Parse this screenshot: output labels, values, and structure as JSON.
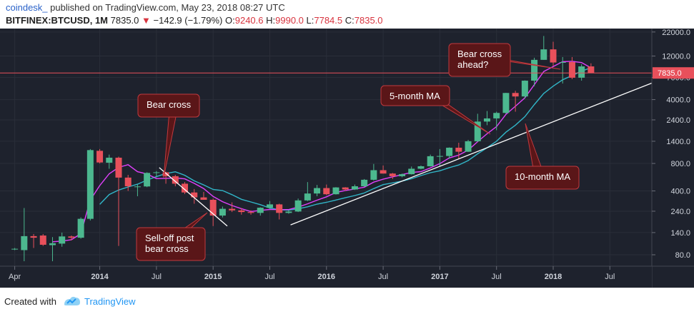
{
  "header": {
    "author": "coindesk_",
    "published_text": "published on TradingView.com, May 23, 2018 08:27 UTC",
    "symbol": "BITFINEX:BTCUSD, 1M",
    "last": "7835.0",
    "change": "−142.9 (−1.79%)",
    "open_label": "O:",
    "open": "9240.6",
    "high_label": "H:",
    "high": "9990.0",
    "low_label": "L:",
    "low": "7784.5",
    "close_label": "C:",
    "close": "7835.0"
  },
  "footer": {
    "created_with": "Created with",
    "brand": "TradingView"
  },
  "colors": {
    "background": "#1e222d",
    "up": "#4cb88f",
    "down": "#e8505b",
    "ma5": "#e040fb",
    "ma10": "#31b6c8",
    "price_line": "#e8505b",
    "annotation_bg": "#5a1618",
    "annotation_border": "#c0393e"
  },
  "chart_data": {
    "type": "candlestick",
    "title": "BITFINEX:BTCUSD, 1M",
    "y_scale": "log",
    "ylim": [
      60,
      24000
    ],
    "y_ticks": [
      80,
      140,
      240,
      400,
      800,
      1400,
      2400,
      4000,
      7000,
      12000,
      22000
    ],
    "y_tick_labels": [
      "80.0",
      "140.0",
      "240.0",
      "400.0",
      "800.0",
      "1400.0",
      "2400.0",
      "4000.0",
      "7000.0",
      "12000.0",
      "22000.0"
    ],
    "last_price_label": "7835.0",
    "last_price": 7835,
    "x_ticks": [
      {
        "label": "Apr",
        "index": 0,
        "bold": false
      },
      {
        "label": "2014",
        "index": 9,
        "bold": true
      },
      {
        "label": "Jul",
        "index": 15,
        "bold": false
      },
      {
        "label": "2015",
        "index": 21,
        "bold": true
      },
      {
        "label": "Jul",
        "index": 27,
        "bold": false
      },
      {
        "label": "2016",
        "index": 33,
        "bold": true
      },
      {
        "label": "Jul",
        "index": 39,
        "bold": false
      },
      {
        "label": "2017",
        "index": 45,
        "bold": true
      },
      {
        "label": "Jul",
        "index": 51,
        "bold": false
      },
      {
        "label": "2018",
        "index": 57,
        "bold": true
      },
      {
        "label": "Jul",
        "index": 63,
        "bold": false
      }
    ],
    "x_total_slots": 69,
    "candles": [
      {
        "o": 93,
        "h": 95,
        "l": 90,
        "c": 93
      },
      {
        "o": 90,
        "h": 260,
        "l": 68,
        "c": 128
      },
      {
        "o": 128,
        "h": 135,
        "l": 95,
        "c": 123
      },
      {
        "o": 130,
        "h": 135,
        "l": 100,
        "c": 103
      },
      {
        "o": 102,
        "h": 125,
        "l": 68,
        "c": 107
      },
      {
        "o": 106,
        "h": 140,
        "l": 98,
        "c": 127
      },
      {
        "o": 127,
        "h": 130,
        "l": 115,
        "c": 123
      },
      {
        "o": 123,
        "h": 205,
        "l": 120,
        "c": 198
      },
      {
        "o": 198,
        "h": 1150,
        "l": 190,
        "c": 1120
      },
      {
        "o": 1100,
        "h": 1150,
        "l": 800,
        "c": 820
      },
      {
        "o": 815,
        "h": 1000,
        "l": 700,
        "c": 925
      },
      {
        "o": 925,
        "h": 950,
        "l": 100,
        "c": 560
      },
      {
        "o": 560,
        "h": 600,
        "l": 400,
        "c": 450
      },
      {
        "o": 448,
        "h": 470,
        "l": 350,
        "c": 448
      },
      {
        "o": 448,
        "h": 640,
        "l": 440,
        "c": 630
      },
      {
        "o": 630,
        "h": 660,
        "l": 560,
        "c": 640
      },
      {
        "o": 640,
        "h": 650,
        "l": 480,
        "c": 580
      },
      {
        "o": 580,
        "h": 600,
        "l": 450,
        "c": 480
      },
      {
        "o": 480,
        "h": 500,
        "l": 370,
        "c": 385
      },
      {
        "o": 385,
        "h": 420,
        "l": 290,
        "c": 340
      },
      {
        "o": 340,
        "h": 390,
        "l": 320,
        "c": 320
      },
      {
        "o": 320,
        "h": 330,
        "l": 165,
        "c": 215
      },
      {
        "o": 215,
        "h": 270,
        "l": 205,
        "c": 255
      },
      {
        "o": 255,
        "h": 300,
        "l": 235,
        "c": 245
      },
      {
        "o": 245,
        "h": 260,
        "l": 220,
        "c": 235
      },
      {
        "o": 235,
        "h": 245,
        "l": 220,
        "c": 230
      },
      {
        "o": 230,
        "h": 265,
        "l": 215,
        "c": 262
      },
      {
        "o": 262,
        "h": 310,
        "l": 255,
        "c": 285
      },
      {
        "o": 285,
        "h": 290,
        "l": 195,
        "c": 230
      },
      {
        "o": 230,
        "h": 245,
        "l": 225,
        "c": 238
      },
      {
        "o": 238,
        "h": 330,
        "l": 235,
        "c": 315
      },
      {
        "o": 315,
        "h": 500,
        "l": 310,
        "c": 375
      },
      {
        "o": 375,
        "h": 465,
        "l": 350,
        "c": 430
      },
      {
        "o": 430,
        "h": 470,
        "l": 360,
        "c": 368
      },
      {
        "o": 368,
        "h": 440,
        "l": 365,
        "c": 437
      },
      {
        "o": 437,
        "h": 440,
        "l": 400,
        "c": 415
      },
      {
        "o": 415,
        "h": 470,
        "l": 410,
        "c": 450
      },
      {
        "o": 450,
        "h": 540,
        "l": 445,
        "c": 530
      },
      {
        "o": 530,
        "h": 790,
        "l": 520,
        "c": 675
      },
      {
        "o": 675,
        "h": 760,
        "l": 620,
        "c": 620
      },
      {
        "o": 620,
        "h": 630,
        "l": 540,
        "c": 580
      },
      {
        "o": 580,
        "h": 620,
        "l": 565,
        "c": 610
      },
      {
        "o": 610,
        "h": 740,
        "l": 605,
        "c": 700
      },
      {
        "o": 700,
        "h": 760,
        "l": 690,
        "c": 745
      },
      {
        "o": 745,
        "h": 1000,
        "l": 740,
        "c": 960
      },
      {
        "o": 960,
        "h": 1150,
        "l": 750,
        "c": 965
      },
      {
        "o": 965,
        "h": 1200,
        "l": 900,
        "c": 1190
      },
      {
        "o": 1190,
        "h": 1350,
        "l": 900,
        "c": 1075
      },
      {
        "o": 1075,
        "h": 1450,
        "l": 1070,
        "c": 1400
      },
      {
        "o": 1400,
        "h": 2800,
        "l": 1380,
        "c": 2300
      },
      {
        "o": 2300,
        "h": 3000,
        "l": 2100,
        "c": 2490
      },
      {
        "o": 2490,
        "h": 2950,
        "l": 1850,
        "c": 2860
      },
      {
        "o": 2860,
        "h": 4750,
        "l": 2800,
        "c": 4730
      },
      {
        "o": 4730,
        "h": 5000,
        "l": 2950,
        "c": 4330
      },
      {
        "o": 4330,
        "h": 6500,
        "l": 4100,
        "c": 6450
      },
      {
        "o": 6450,
        "h": 11500,
        "l": 5600,
        "c": 10900
      },
      {
        "o": 10900,
        "h": 19900,
        "l": 10900,
        "c": 14200
      },
      {
        "o": 14200,
        "h": 17200,
        "l": 9300,
        "c": 10200
      },
      {
        "o": 10200,
        "h": 11700,
        "l": 6000,
        "c": 10300
      },
      {
        "o": 10300,
        "h": 11700,
        "l": 6700,
        "c": 6950
      },
      {
        "o": 6950,
        "h": 9750,
        "l": 6450,
        "c": 9240
      },
      {
        "o": 9240,
        "h": 9990,
        "l": 7784,
        "c": 7835
      }
    ],
    "ma5": [
      {
        "i": 4,
        "v": 111
      },
      {
        "i": 5,
        "v": 113
      },
      {
        "i": 6,
        "v": 117
      },
      {
        "i": 7,
        "v": 136
      },
      {
        "i": 8,
        "v": 318
      },
      {
        "i": 9,
        "v": 458
      },
      {
        "i": 10,
        "v": 617
      },
      {
        "i": 11,
        "v": 725
      },
      {
        "i": 12,
        "v": 775
      },
      {
        "i": 13,
        "v": 650
      },
      {
        "i": 14,
        "v": 613
      },
      {
        "i": 15,
        "v": 546
      },
      {
        "i": 16,
        "v": 550
      },
      {
        "i": 17,
        "v": 556
      },
      {
        "i": 18,
        "v": 543
      },
      {
        "i": 19,
        "v": 485
      },
      {
        "i": 20,
        "v": 425
      },
      {
        "i": 21,
        "v": 348
      },
      {
        "i": 22,
        "v": 305
      },
      {
        "i": 23,
        "v": 277
      },
      {
        "i": 24,
        "v": 256
      },
      {
        "i": 25,
        "v": 238
      },
      {
        "i": 26,
        "v": 245
      },
      {
        "i": 27,
        "v": 251
      },
      {
        "i": 28,
        "v": 250
      },
      {
        "i": 29,
        "v": 250
      },
      {
        "i": 30,
        "v": 266
      },
      {
        "i": 31,
        "v": 289
      },
      {
        "i": 32,
        "v": 317
      },
      {
        "i": 33,
        "v": 345
      },
      {
        "i": 34,
        "v": 385
      },
      {
        "i": 35,
        "v": 405
      },
      {
        "i": 36,
        "v": 420
      },
      {
        "i": 37,
        "v": 440
      },
      {
        "i": 38,
        "v": 500
      },
      {
        "i": 39,
        "v": 538
      },
      {
        "i": 40,
        "v": 571
      },
      {
        "i": 41,
        "v": 603
      },
      {
        "i": 42,
        "v": 637
      },
      {
        "i": 43,
        "v": 651
      },
      {
        "i": 44,
        "v": 715
      },
      {
        "i": 45,
        "v": 796
      },
      {
        "i": 46,
        "v": 920
      },
      {
        "i": 47,
        "v": 987
      },
      {
        "i": 48,
        "v": 1118
      },
      {
        "i": 49,
        "v": 1386
      },
      {
        "i": 50,
        "v": 1691
      },
      {
        "i": 51,
        "v": 2025
      },
      {
        "i": 52,
        "v": 2760
      },
      {
        "i": 53,
        "v": 3382
      },
      {
        "i": 54,
        "v": 4174
      },
      {
        "i": 55,
        "v": 5834
      },
      {
        "i": 56,
        "v": 8122
      },
      {
        "i": 57,
        "v": 9216
      },
      {
        "i": 58,
        "v": 10410
      },
      {
        "i": 59,
        "v": 10510
      },
      {
        "i": 60,
        "v": 10180
      },
      {
        "i": 61,
        "v": 8900
      }
    ],
    "ma10": [
      {
        "i": 9,
        "v": 285
      },
      {
        "i": 10,
        "v": 365
      },
      {
        "i": 11,
        "v": 409
      },
      {
        "i": 12,
        "v": 442
      },
      {
        "i": 13,
        "v": 474
      },
      {
        "i": 14,
        "v": 525
      },
      {
        "i": 15,
        "v": 575
      },
      {
        "i": 16,
        "v": 620
      },
      {
        "i": 17,
        "v": 648
      },
      {
        "i": 18,
        "v": 594
      },
      {
        "i": 19,
        "v": 516
      },
      {
        "i": 20,
        "v": 466
      },
      {
        "i": 21,
        "v": 415
      },
      {
        "i": 22,
        "v": 404
      },
      {
        "i": 23,
        "v": 364
      },
      {
        "i": 24,
        "v": 324
      },
      {
        "i": 25,
        "v": 303
      },
      {
        "i": 26,
        "v": 283
      },
      {
        "i": 27,
        "v": 260
      },
      {
        "i": 28,
        "v": 249
      },
      {
        "i": 29,
        "v": 247
      },
      {
        "i": 30,
        "v": 255
      },
      {
        "i": 31,
        "v": 268
      },
      {
        "i": 32,
        "v": 287
      },
      {
        "i": 33,
        "v": 300
      },
      {
        "i": 34,
        "v": 318
      },
      {
        "i": 35,
        "v": 337
      },
      {
        "i": 36,
        "v": 356
      },
      {
        "i": 37,
        "v": 380
      },
      {
        "i": 38,
        "v": 424
      },
      {
        "i": 39,
        "v": 469
      },
      {
        "i": 40,
        "v": 490
      },
      {
        "i": 41,
        "v": 512
      },
      {
        "i": 42,
        "v": 545
      },
      {
        "i": 43,
        "v": 590
      },
      {
        "i": 44,
        "v": 634
      },
      {
        "i": 45,
        "v": 665
      },
      {
        "i": 46,
        "v": 720
      },
      {
        "i": 47,
        "v": 770
      },
      {
        "i": 48,
        "v": 860
      },
      {
        "i": 49,
        "v": 1020
      },
      {
        "i": 50,
        "v": 1190
      },
      {
        "i": 51,
        "v": 1400
      },
      {
        "i": 52,
        "v": 1760
      },
      {
        "i": 53,
        "v": 2100
      },
      {
        "i": 54,
        "v": 2600
      },
      {
        "i": 55,
        "v": 3530
      },
      {
        "i": 56,
        "v": 4680
      },
      {
        "i": 57,
        "v": 5620
      },
      {
        "i": 58,
        "v": 6600
      },
      {
        "i": 59,
        "v": 7330
      },
      {
        "i": 60,
        "v": 8200
      },
      {
        "i": 61,
        "v": 8950
      }
    ],
    "trendlines": [
      {
        "name": "sell-off-line",
        "from": {
          "i": 15.3,
          "v": 720
        },
        "to": {
          "i": 22.5,
          "v": 165
        }
      },
      {
        "name": "support-line",
        "from": {
          "i": 29.2,
          "v": 170
        },
        "to": {
          "i": 68,
          "v": 6400
        }
      }
    ],
    "annotations": [
      {
        "name": "bear-cross",
        "text": [
          "Bear cross"
        ]
      },
      {
        "name": "sell-off",
        "text": [
          "Sell-off post",
          "bear cross"
        ]
      },
      {
        "name": "five-month-ma",
        "text": [
          "5-month MA"
        ]
      },
      {
        "name": "bear-cross-ahead",
        "text": [
          "Bear cross",
          "ahead?"
        ]
      },
      {
        "name": "ten-month-ma",
        "text": [
          "10-month MA"
        ]
      }
    ]
  }
}
